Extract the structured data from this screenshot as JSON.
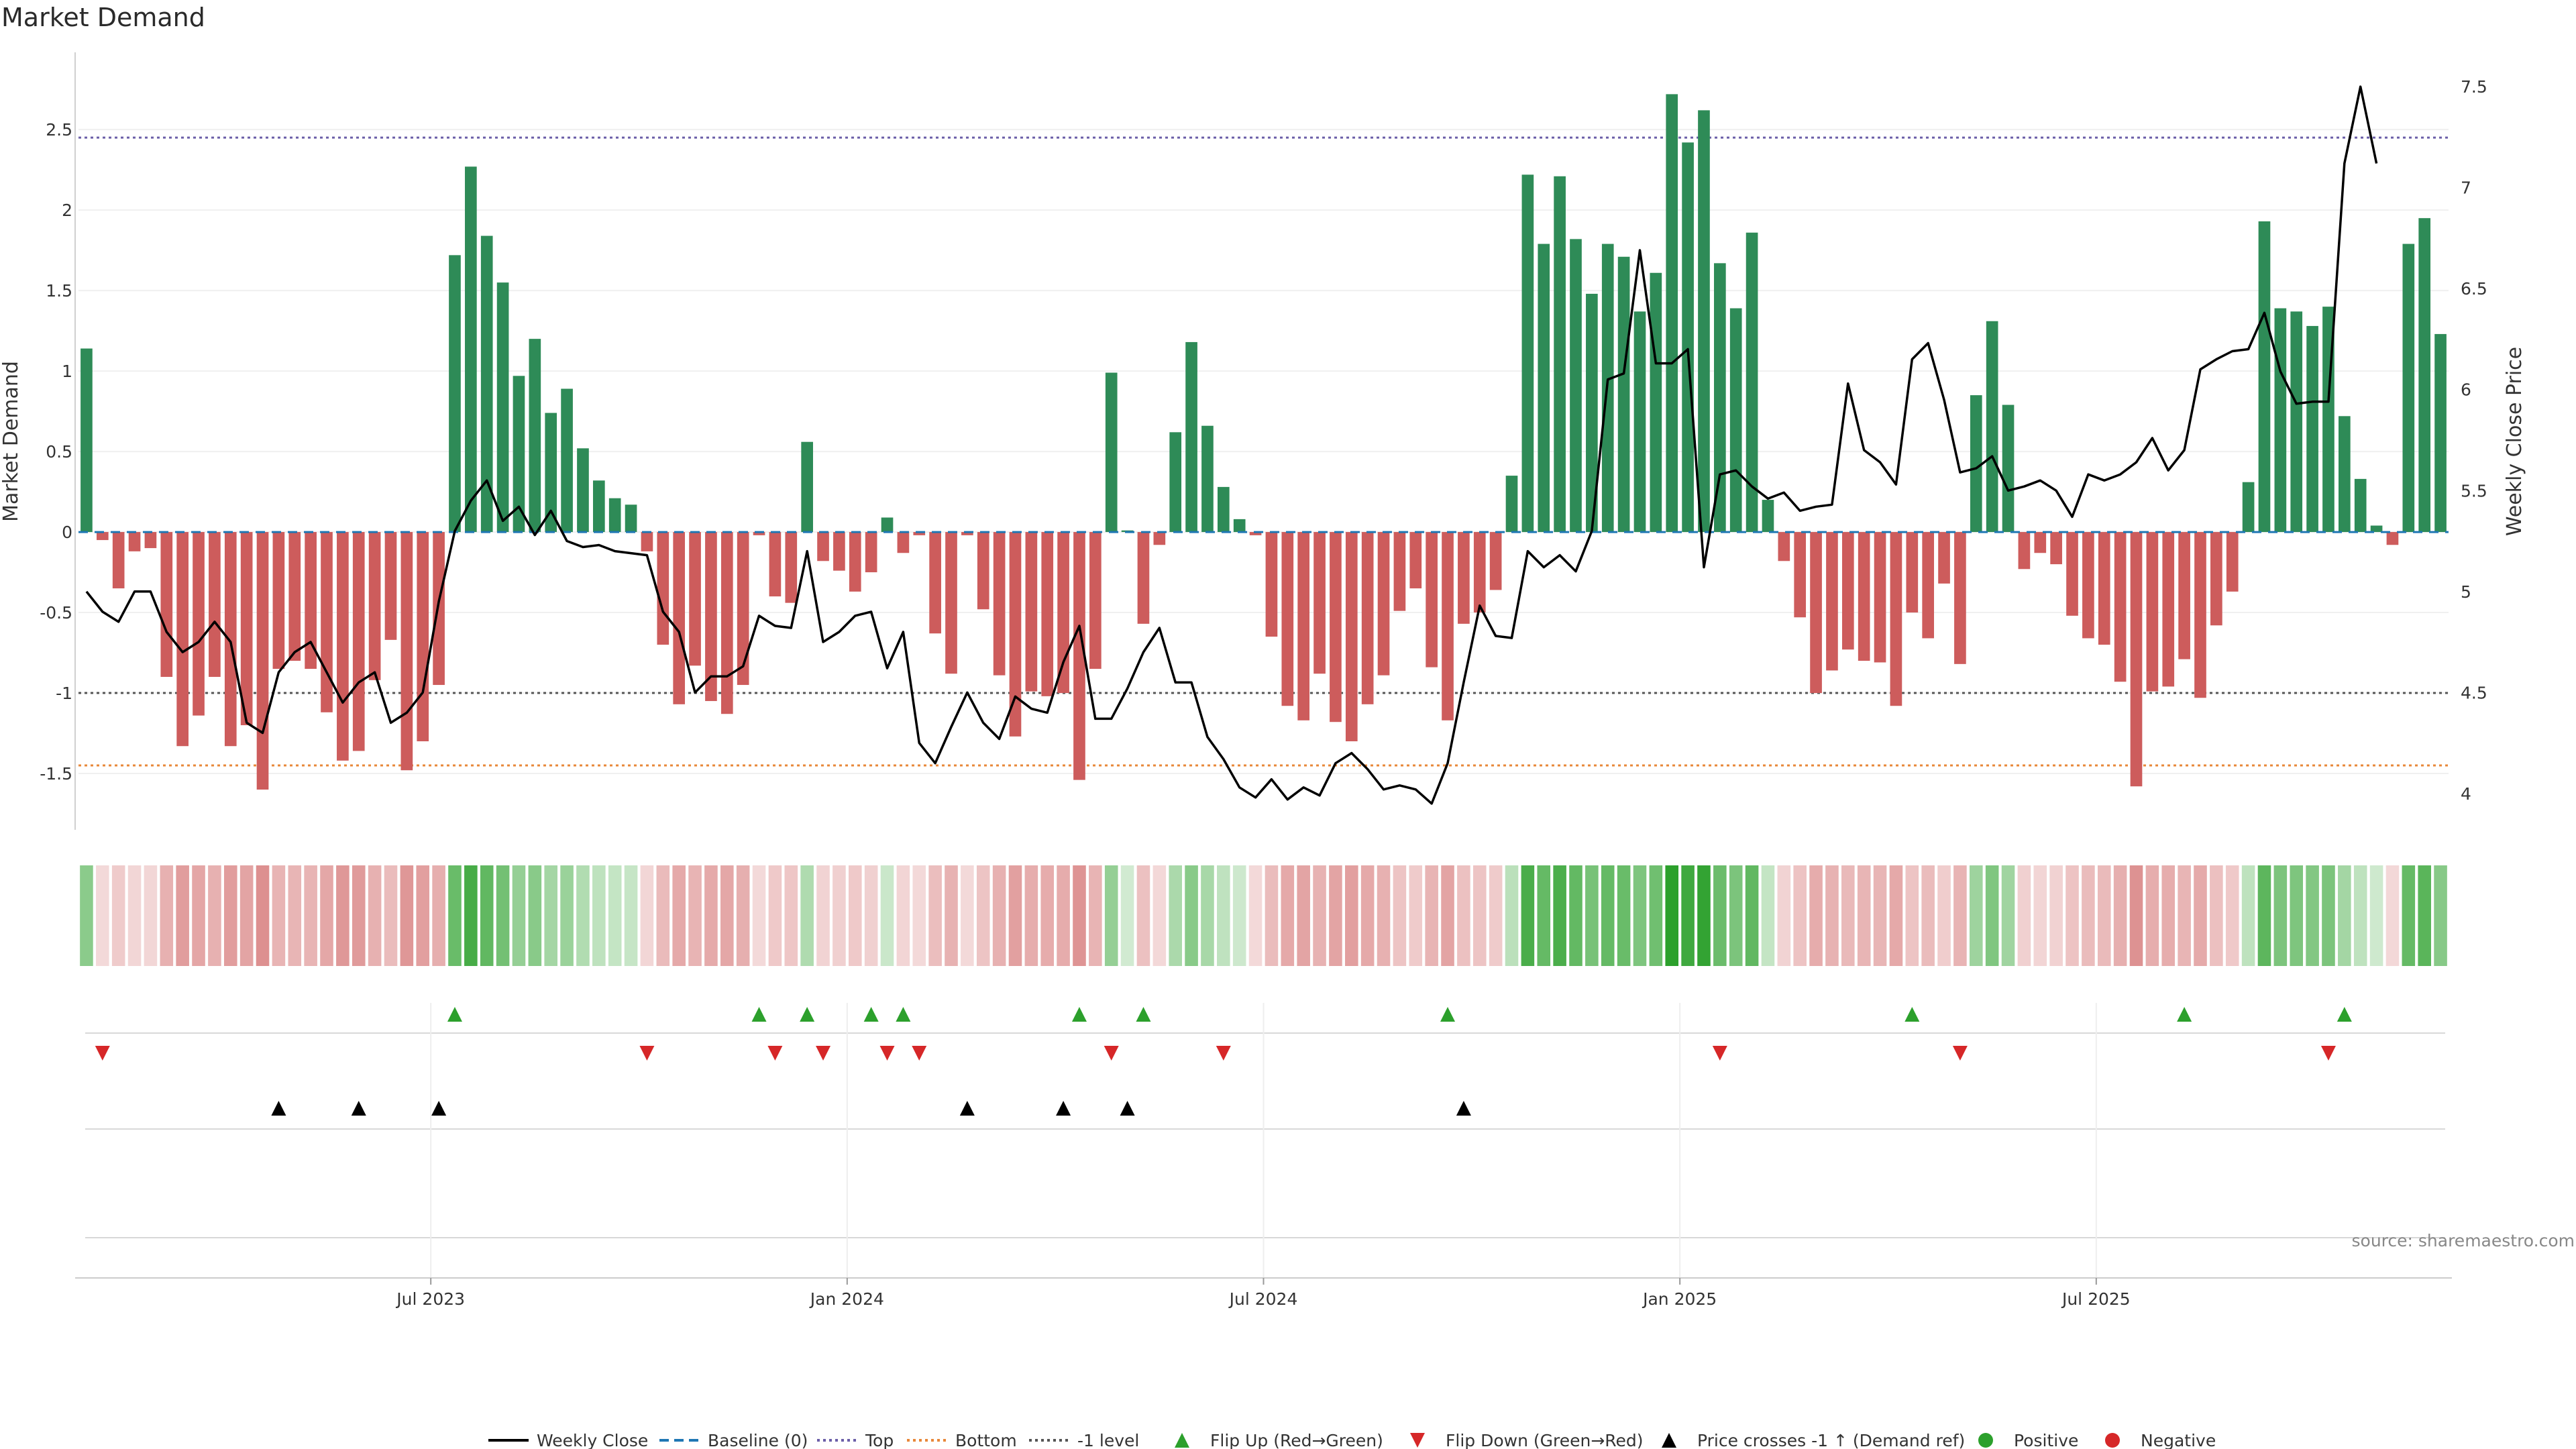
{
  "title": "Market Demand",
  "source": "source: sharemaestro.com",
  "colors": {
    "green": "#2e8b57",
    "red": "#cd5c5c",
    "line": "#000000",
    "top": "#6b5fa8",
    "bottom": "#e8883a",
    "minus1": "#555555",
    "baseline": "#1f77b4",
    "flipUp": "#2ca02c",
    "flipDown": "#d62728"
  },
  "legend": [
    {
      "label": "Weekly Close",
      "kind": "line"
    },
    {
      "label": "Baseline (0)",
      "kind": "dash-blue"
    },
    {
      "label": "Top",
      "kind": "dot-purple"
    },
    {
      "label": "Bottom",
      "kind": "dot-orange"
    },
    {
      "label": "-1 level",
      "kind": "dot-gray"
    },
    {
      "label": "Flip Up (Red→Green)",
      "kind": "tri-up-green"
    },
    {
      "label": "Flip Down (Green→Red)",
      "kind": "tri-down-red"
    },
    {
      "label": "Price crosses -1 ↑ (Demand ref)",
      "kind": "tri-up-black"
    },
    {
      "label": "Positive",
      "kind": "dot-green"
    },
    {
      "label": "Negative",
      "kind": "dot-red"
    }
  ],
  "chart_data": {
    "type": "bar",
    "title": "Market Demand",
    "ylabel": "Market Demand",
    "y2label": "Weekly Close Price",
    "ylim": [
      -1.85,
      2.98
    ],
    "y2lim": [
      3.82,
      7.67
    ],
    "yticks": [
      "-1.5",
      "-1",
      "-0.5",
      "0",
      "0.5",
      "1",
      "1.5",
      "2",
      "2.5"
    ],
    "yticks_values": [
      -1.5,
      -1,
      -0.5,
      0,
      0.5,
      1,
      1.5,
      2,
      2.5
    ],
    "y2ticks": [
      "4",
      "4.5",
      "5",
      "5.5",
      "6",
      "6.5",
      "7",
      "7.5"
    ],
    "y2ticks_values": [
      4,
      4.5,
      5,
      5.5,
      6,
      6.5,
      7,
      7.5
    ],
    "xticks": [
      "Jul 2023",
      "Jan 2024",
      "Jul 2024",
      "Jan 2025",
      "Jul 2025"
    ],
    "xticks_week_index": [
      22,
      48,
      74,
      100,
      126
    ],
    "reference_lines": {
      "top": 2.45,
      "bottom": -1.45,
      "minus1": -1.0,
      "baseline": 0
    },
    "demand": [
      1.14,
      -0.05,
      -0.35,
      -0.12,
      -0.1,
      -0.9,
      -1.33,
      -1.14,
      -0.9,
      -1.33,
      -1.2,
      -1.6,
      -0.85,
      -0.8,
      -0.85,
      -1.12,
      -1.42,
      -1.36,
      -0.92,
      -0.67,
      -1.48,
      -1.3,
      -0.95,
      1.72,
      2.27,
      1.84,
      1.55,
      0.97,
      1.2,
      0.74,
      0.89,
      0.52,
      0.32,
      0.21,
      0.17,
      -0.12,
      -0.7,
      -1.07,
      -0.83,
      -1.05,
      -1.13,
      -0.95,
      -0.02,
      -0.4,
      -0.44,
      0.56,
      -0.18,
      -0.24,
      -0.37,
      -0.25,
      0.09,
      -0.13,
      -0.02,
      -0.63,
      -0.88,
      -0.02,
      -0.48,
      -0.89,
      -1.27,
      -0.99,
      -1.02,
      -1.0,
      -1.54,
      -0.85,
      0.99,
      0.01,
      -0.57,
      -0.08,
      0.62,
      1.18,
      0.66,
      0.28,
      0.08,
      -0.02,
      -0.65,
      -1.08,
      -1.17,
      -0.88,
      -1.18,
      -1.3,
      -1.07,
      -0.89,
      -0.49,
      -0.35,
      -0.84,
      -1.17,
      -0.57,
      -0.5,
      -0.36,
      0.35,
      2.22,
      1.79,
      2.21,
      1.82,
      1.48,
      1.79,
      1.71,
      1.37,
      1.61,
      2.72,
      2.42,
      2.62,
      1.67,
      1.39,
      1.86,
      0.2,
      -0.18,
      -0.53,
      -1.0,
      -0.86,
      -0.73,
      -0.8,
      -0.81,
      -1.08,
      -0.5,
      -0.66,
      -0.32,
      -0.82,
      0.85,
      1.31,
      0.79,
      -0.23,
      -0.13,
      -0.2,
      -0.52,
      -0.66,
      -0.7,
      -0.93,
      -1.58,
      -0.99,
      -0.96,
      -0.79,
      -1.03,
      -0.58,
      -0.37,
      0.31,
      1.93,
      1.39,
      1.37,
      1.28,
      1.4,
      0.72,
      0.33,
      0.04,
      -0.08,
      1.79,
      1.95,
      1.23
    ],
    "weekly_close": [
      5.0,
      4.9,
      4.85,
      5.0,
      5.0,
      4.8,
      4.7,
      4.75,
      4.85,
      4.75,
      4.35,
      4.3,
      4.6,
      4.7,
      4.75,
      4.6,
      4.45,
      4.55,
      4.6,
      4.35,
      4.4,
      4.5,
      4.95,
      5.3,
      5.45,
      5.55,
      5.35,
      5.42,
      5.28,
      5.4,
      5.25,
      5.22,
      5.23,
      5.2,
      5.19,
      5.18,
      4.9,
      4.8,
      4.5,
      4.58,
      4.58,
      4.63,
      4.88,
      4.83,
      4.82,
      5.2,
      4.75,
      4.8,
      4.88,
      4.9,
      4.62,
      4.8,
      4.25,
      4.15,
      4.33,
      4.5,
      4.35,
      4.27,
      4.48,
      4.42,
      4.4,
      4.65,
      4.83,
      4.37,
      4.37,
      4.52,
      4.7,
      4.82,
      4.55,
      4.55,
      4.28,
      4.17,
      4.03,
      3.98,
      4.07,
      3.97,
      4.03,
      3.99,
      4.15,
      4.2,
      4.12,
      4.02,
      4.04,
      4.02,
      3.95,
      4.15,
      4.55,
      4.93,
      4.78,
      4.77,
      5.2,
      5.12,
      5.18,
      5.1,
      5.3,
      6.05,
      6.08,
      6.69,
      6.13,
      6.13,
      6.2,
      5.12,
      5.58,
      5.6,
      5.52,
      5.46,
      5.49,
      5.4,
      5.42,
      5.43,
      6.03,
      5.7,
      5.64,
      5.53,
      6.15,
      6.23,
      5.95,
      5.59,
      5.61,
      5.67,
      5.5,
      5.52,
      5.55,
      5.5,
      5.37,
      5.58,
      5.55,
      5.58,
      5.64,
      5.76,
      5.6,
      5.7,
      6.1,
      6.15,
      6.19,
      6.2,
      6.38,
      6.09,
      5.93,
      5.94,
      5.94,
      7.12,
      7.5,
      7.12
    ]
  },
  "bands": {
    "flip_up_weeks": [
      23,
      42,
      45,
      49,
      51,
      62,
      66,
      85,
      114,
      131,
      141
    ],
    "flip_down_weeks": [
      1,
      35,
      43,
      46,
      50,
      52,
      64,
      71,
      102,
      117,
      140
    ],
    "price_cross_weeks": [
      12,
      17,
      22,
      55,
      61,
      65,
      86
    ]
  }
}
